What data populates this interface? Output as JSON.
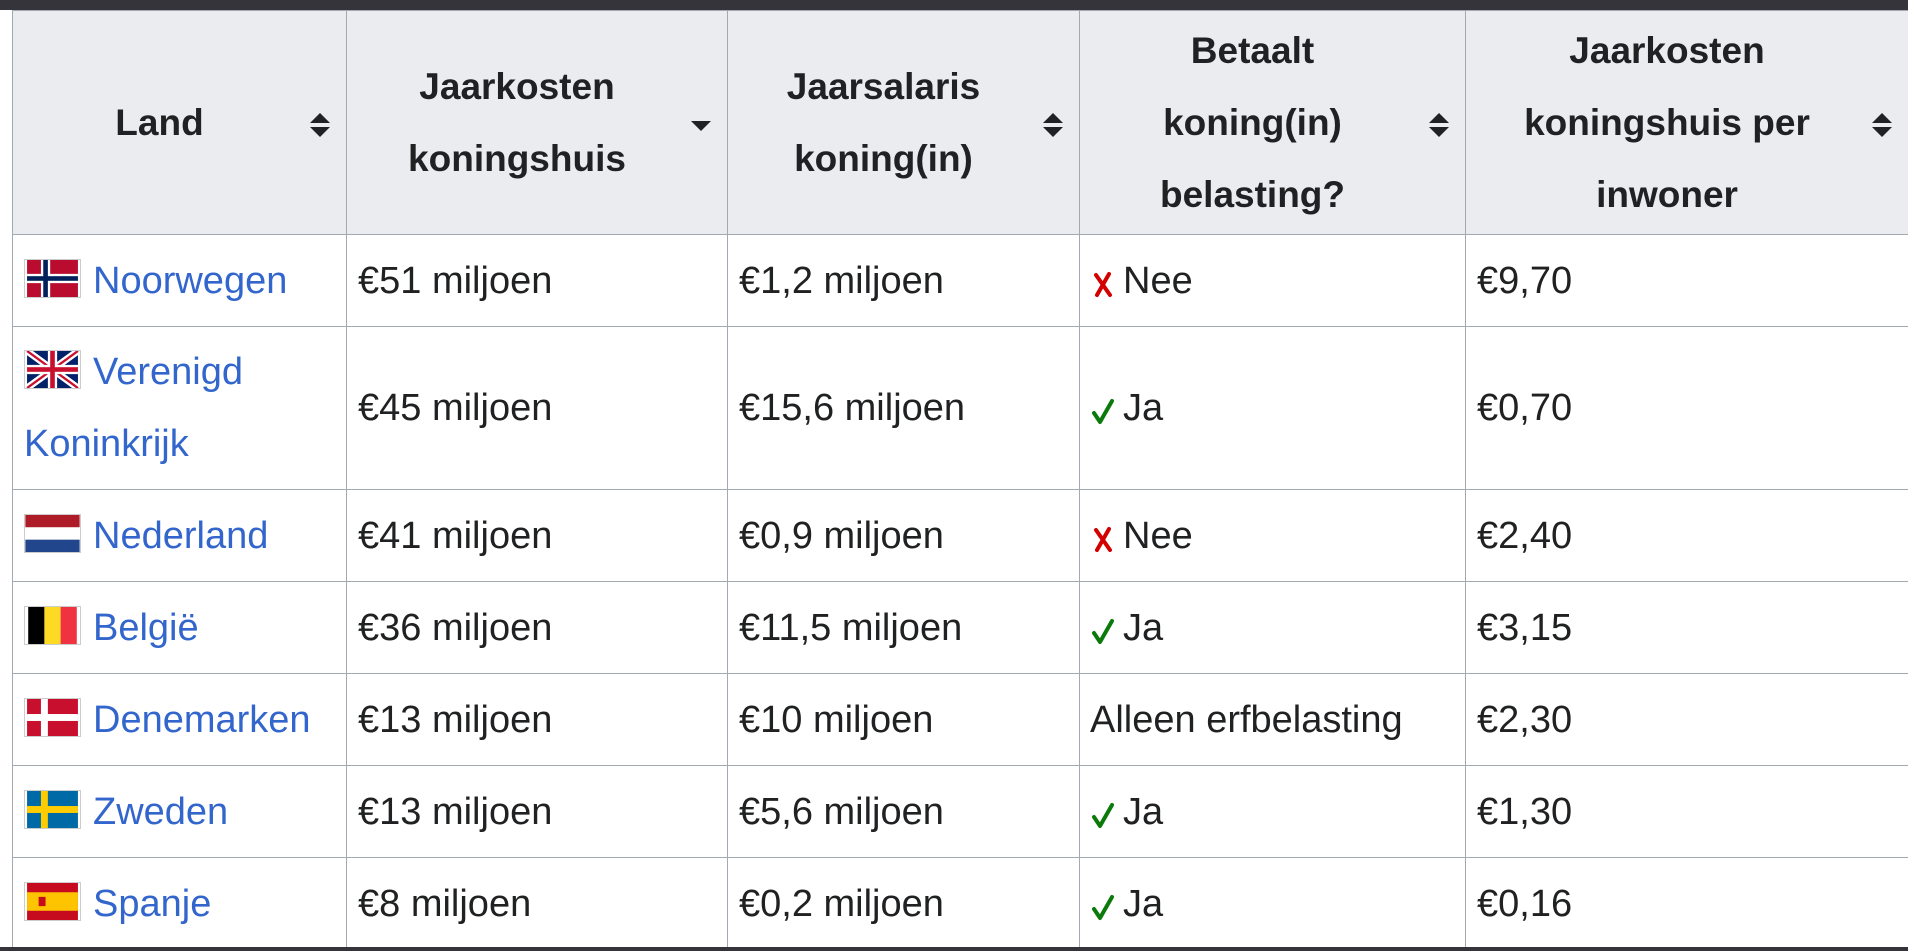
{
  "table": {
    "headers": [
      "Land",
      "Jaarkosten koningshuis",
      "Jaarsalaris koning(in)",
      "Betaalt koning(in) belasting?",
      "Jaarkosten koningshuis per inwoner"
    ],
    "rows": [
      [
        "Noorwegen",
        "€51 miljoen",
        "€1,2 miljoen",
        "Nee",
        "€9,70"
      ],
      [
        "Verenigd Koninkrijk",
        "€45 miljoen",
        "€15,6 miljoen",
        "Ja",
        "€0,70"
      ],
      [
        "Nederland",
        "€41 miljoen",
        "€0,9 miljoen",
        "Nee",
        "€2,40"
      ],
      [
        "België",
        "€36 miljoen",
        "€11,5 miljoen",
        "Ja",
        "€3,15"
      ],
      [
        "Denemarken",
        "€13 miljoen",
        "€10 miljoen",
        "Alleen erfbelasting",
        "€2,30"
      ],
      [
        "Zweden",
        "€13 miljoen",
        "€5,6 miljoen",
        "Ja",
        "€1,30"
      ],
      [
        "Spanje",
        "€8 miljoen",
        "€0,2 miljoen",
        "Ja",
        "€0,16"
      ]
    ]
  }
}
